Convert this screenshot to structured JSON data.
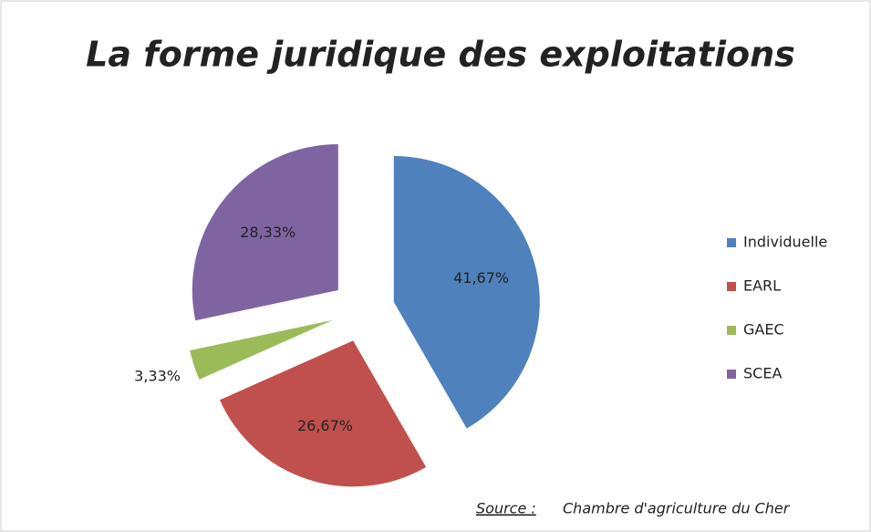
{
  "chart_data": {
    "type": "pie",
    "title": "La forme juridique des exploitations",
    "categories": [
      "Individuelle",
      "EARL",
      "GAEC",
      "SCEA"
    ],
    "values": [
      41.67,
      26.67,
      3.33,
      28.33
    ],
    "value_labels": [
      "41,67%",
      "26,67%",
      "3,33%",
      "28,33%"
    ],
    "colors": [
      "#4f81bd",
      "#c0504d",
      "#9bbb59",
      "#8064a2"
    ],
    "legend": "right",
    "source_label": "Source :",
    "source": "Chambre d'agriculture du Cher"
  }
}
